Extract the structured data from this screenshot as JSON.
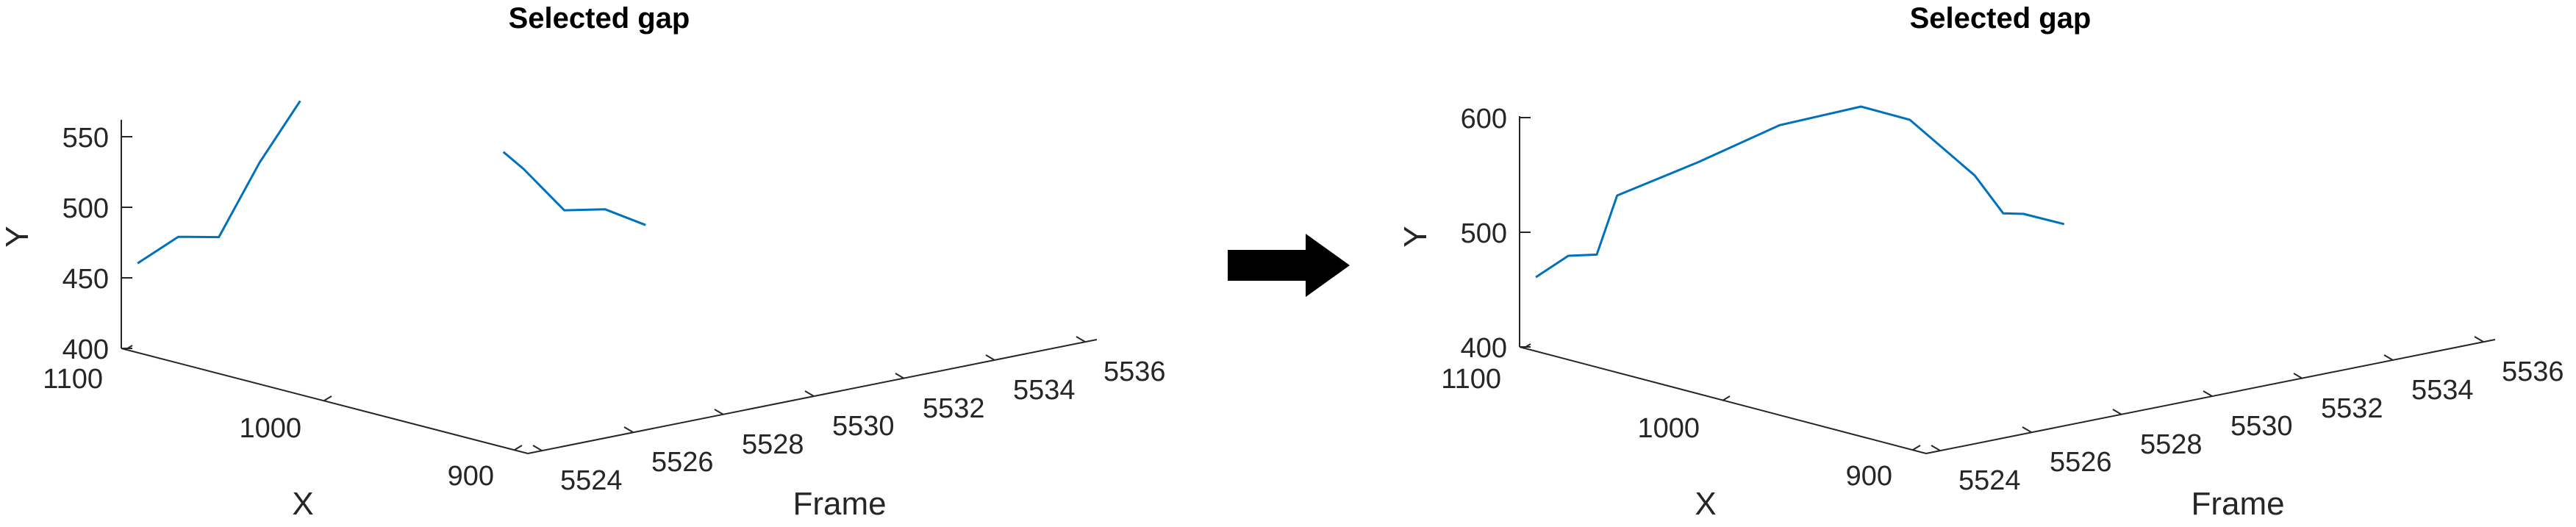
{
  "colors": {
    "series": "#0072BD",
    "axis": "#262626",
    "arrow": "#000000"
  },
  "arrow": {
    "icon": "right-arrow-icon"
  },
  "chart_data": [
    {
      "type": "line",
      "projection": "3d",
      "title": "Selected gap",
      "xlabel": "X",
      "ylabel": "Y",
      "zlabel": "Frame",
      "x_ticks": [
        "1100",
        "1000",
        "900"
      ],
      "y_ticks": [
        "400",
        "450",
        "500",
        "550"
      ],
      "frame_ticks": [
        "5524",
        "5526",
        "5528",
        "5530",
        "5532",
        "5534",
        "5536"
      ],
      "series": [
        {
          "frame": [
            5523,
            5524,
            5525,
            5526,
            5527
          ],
          "x": [
            1100,
            1100,
            1100,
            1100,
            1100
          ],
          "y": [
            458,
            471,
            465,
            512,
            550
          ]
        },
        {
          "frame": [
            5532,
            5532.5,
            5533.5,
            5534.5,
            5535.5
          ],
          "x": [
            880,
            880,
            880,
            880,
            880
          ],
          "y": [
            485,
            470,
            435,
            430,
            413
          ]
        }
      ]
    },
    {
      "type": "line",
      "projection": "3d",
      "title": "Selected gap",
      "xlabel": "X",
      "ylabel": "Y",
      "zlabel": "Frame",
      "x_ticks": [
        "1100",
        "1000",
        "900"
      ],
      "y_ticks": [
        "400",
        "500",
        "600"
      ],
      "frame_ticks": [
        "5524",
        "5526",
        "5528",
        "5530",
        "5532",
        "5534",
        "5536"
      ],
      "series": [
        {
          "frame": [
            5523,
            5523.8,
            5524.5,
            5525,
            5527,
            5529,
            5531,
            5532.2,
            5533,
            5533.8,
            5534.5,
            5535,
            5535.5,
            5536
          ],
          "x": [
            1100,
            1100,
            1100,
            1100,
            1050,
            1000,
            950,
            920,
            900,
            890,
            880,
            880,
            880,
            880
          ],
          "y": [
            458,
            471,
            467,
            515,
            530,
            548,
            550,
            530,
            500,
            470,
            432,
            428,
            420,
            412
          ]
        }
      ]
    }
  ]
}
